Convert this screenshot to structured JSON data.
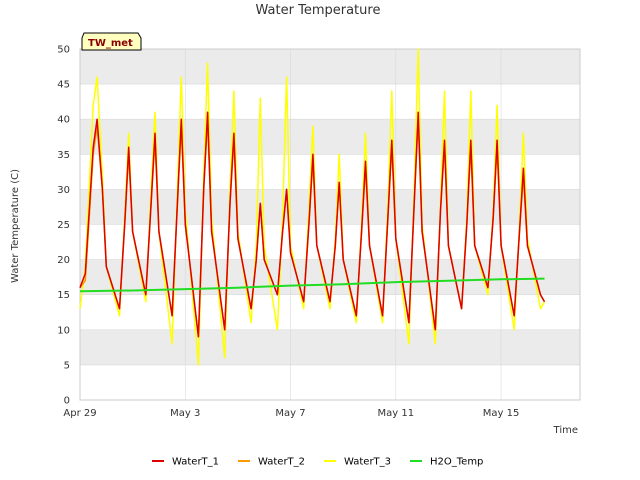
{
  "chart_data": {
    "type": "line",
    "title": "Water Temperature",
    "xlabel": "Time",
    "ylabel": "Water Temperature (C)",
    "site_badge": "TW_met",
    "x_start": "Apr 29",
    "x_range_days": [
      0,
      19
    ],
    "ylim": [
      0,
      50
    ],
    "yticks": [
      0,
      5,
      10,
      15,
      20,
      25,
      30,
      35,
      40,
      45,
      50
    ],
    "xticks": [
      {
        "label": "Apr 29",
        "day": 0
      },
      {
        "label": "May 3",
        "day": 4
      },
      {
        "label": "May 7",
        "day": 8
      },
      {
        "label": "May 11",
        "day": 12
      },
      {
        "label": "May 15",
        "day": 16
      }
    ],
    "grid": true,
    "legend_position": "bottom",
    "colors": {
      "WaterT_1": "#dd0000",
      "WaterT_2": "#ff9900",
      "WaterT_3": "#ffff00",
      "H2O_Temp": "#22dd22",
      "band": "#ebebeb",
      "grid": "#d9d9d9"
    },
    "daily_cycles": [
      {
        "day": 0,
        "min": 13,
        "max": 40
      },
      {
        "day": 1,
        "min": 12,
        "max": 36
      },
      {
        "day": 2,
        "min": 14,
        "max": 38
      },
      {
        "day": 3,
        "min": 11,
        "max": 40
      },
      {
        "day": 4,
        "min": 8,
        "max": 41
      },
      {
        "day": 5,
        "min": 7,
        "max": 38
      },
      {
        "day": 6,
        "min": 12,
        "max": 30
      },
      {
        "day": 7,
        "min": 11,
        "max": 33
      },
      {
        "day": 8,
        "min": 13,
        "max": 35
      },
      {
        "day": 9,
        "min": 13,
        "max": 31
      },
      {
        "day": 10,
        "min": 12,
        "max": 34
      },
      {
        "day": 11,
        "min": 11,
        "max": 37
      },
      {
        "day": 12,
        "min": 10,
        "max": 41
      },
      {
        "day": 13,
        "min": 9,
        "max": 37
      },
      {
        "day": 14,
        "min": 12,
        "max": 37
      },
      {
        "day": 15,
        "min": 15,
        "max": 37
      },
      {
        "day": 16,
        "min": 11,
        "max": 36
      },
      {
        "day": 17,
        "min": 13,
        "max": 33
      }
    ],
    "series": [
      {
        "name": "WaterT_1",
        "x": [
          0,
          0.2,
          0.5,
          0.65,
          0.85,
          1.0,
          1.5,
          1.7,
          1.85,
          2.0,
          2.5,
          2.7,
          2.85,
          3.0,
          3.5,
          3.7,
          3.85,
          4.0,
          4.5,
          4.7,
          4.85,
          5.0,
          5.5,
          5.7,
          5.85,
          6.0,
          6.5,
          6.7,
          6.85,
          7.0,
          7.5,
          7.7,
          7.85,
          8.0,
          8.5,
          8.7,
          8.85,
          9.0,
          9.5,
          9.7,
          9.85,
          10.0,
          10.5,
          10.7,
          10.85,
          11.0,
          11.5,
          11.7,
          11.85,
          12.0,
          12.5,
          12.7,
          12.85,
          13.0,
          13.5,
          13.7,
          13.85,
          14.0,
          14.5,
          14.7,
          14.85,
          15.0,
          15.5,
          15.7,
          15.85,
          16.0,
          16.5,
          16.7,
          16.85,
          17.0,
          17.5,
          17.65
        ],
        "y": [
          16,
          18,
          36,
          40,
          30,
          19,
          13,
          25,
          36,
          24,
          15,
          28,
          38,
          24,
          12,
          28,
          40,
          25,
          9,
          30,
          41,
          24,
          10,
          28,
          38,
          23,
          13,
          20,
          28,
          20,
          15,
          24,
          30,
          21,
          14,
          25,
          35,
          22,
          14,
          22,
          31,
          20,
          12,
          24,
          34,
          22,
          12,
          26,
          37,
          23,
          11,
          28,
          41,
          24,
          10,
          27,
          37,
          22,
          13,
          25,
          37,
          22,
          16,
          26,
          37,
          22,
          12,
          24,
          33,
          22,
          15,
          14
        ]
      },
      {
        "name": "WaterT_2",
        "x": [
          0,
          0.2,
          0.5,
          0.65,
          0.85,
          1.0,
          1.5,
          1.7,
          1.85,
          2.0,
          2.5,
          2.7,
          2.85,
          3.0,
          3.5,
          3.7,
          3.85,
          4.0,
          4.5,
          4.7,
          4.85,
          5.0,
          5.5,
          5.7,
          5.85,
          6.0,
          6.5,
          6.7,
          6.85,
          7.0,
          7.5,
          7.7,
          7.85,
          8.0,
          8.5,
          8.7,
          8.85,
          9.0,
          9.5,
          9.7,
          9.85,
          10.0,
          10.5,
          10.7,
          10.85,
          11.0,
          11.5,
          11.7,
          11.85,
          12.0,
          12.5,
          12.7,
          12.85,
          13.0,
          13.5,
          13.7,
          13.85,
          14.0,
          14.5,
          14.7,
          14.85,
          15.0,
          15.5,
          15.7,
          15.85,
          16.0,
          16.5,
          16.7,
          16.85,
          17.0,
          17.5,
          17.65
        ],
        "y": [
          16,
          17,
          35,
          39,
          30,
          19,
          13,
          25,
          35,
          24,
          15,
          28,
          37,
          24,
          12,
          28,
          39,
          25,
          9,
          30,
          40,
          24,
          10,
          28,
          37,
          23,
          13,
          20,
          28,
          20,
          15,
          24,
          30,
          21,
          14,
          25,
          34,
          22,
          14,
          22,
          31,
          20,
          12,
          24,
          33,
          22,
          12,
          26,
          36,
          23,
          11,
          28,
          40,
          24,
          10,
          27,
          36,
          22,
          13,
          25,
          36,
          22,
          16,
          26,
          36,
          22,
          12,
          24,
          32,
          22,
          15,
          14
        ]
      },
      {
        "name": "WaterT_3",
        "x": [
          0,
          0.2,
          0.5,
          0.65,
          0.85,
          1.0,
          1.5,
          1.7,
          1.85,
          2.0,
          2.5,
          2.7,
          2.85,
          3.0,
          3.5,
          3.7,
          3.85,
          4.0,
          4.5,
          4.7,
          4.85,
          5.0,
          5.5,
          5.7,
          5.85,
          6.0,
          6.5,
          6.7,
          6.85,
          7.0,
          7.5,
          7.7,
          7.85,
          8.0,
          8.5,
          8.7,
          8.85,
          9.0,
          9.5,
          9.7,
          9.85,
          10.0,
          10.5,
          10.7,
          10.85,
          11.0,
          11.5,
          11.7,
          11.85,
          12.0,
          12.5,
          12.7,
          12.85,
          13.0,
          13.5,
          13.7,
          13.85,
          14.0,
          14.5,
          14.7,
          14.85,
          15.0,
          15.5,
          15.7,
          15.85,
          16.0,
          16.5,
          16.7,
          16.85,
          17.0,
          17.5,
          17.65
        ],
        "y": [
          13,
          19,
          42,
          46,
          32,
          19,
          12,
          26,
          38,
          24,
          14,
          30,
          41,
          24,
          8,
          30,
          46,
          27,
          5,
          32,
          48,
          26,
          6,
          30,
          44,
          24,
          11,
          22,
          43,
          22,
          10,
          26,
          46,
          22,
          13,
          27,
          39,
          22,
          13,
          23,
          35,
          20,
          11,
          25,
          38,
          22,
          11,
          28,
          44,
          23,
          8,
          30,
          50,
          25,
          8,
          28,
          44,
          22,
          13,
          26,
          44,
          22,
          15,
          27,
          42,
          22,
          10,
          25,
          38,
          23,
          13,
          14
        ]
      },
      {
        "name": "H2O_Temp",
        "x": [
          0,
          2,
          4,
          6,
          8,
          10,
          12,
          14,
          16,
          17.65
        ],
        "y": [
          15.5,
          15.6,
          15.8,
          16.0,
          16.3,
          16.5,
          16.8,
          17.0,
          17.2,
          17.3
        ]
      }
    ]
  }
}
